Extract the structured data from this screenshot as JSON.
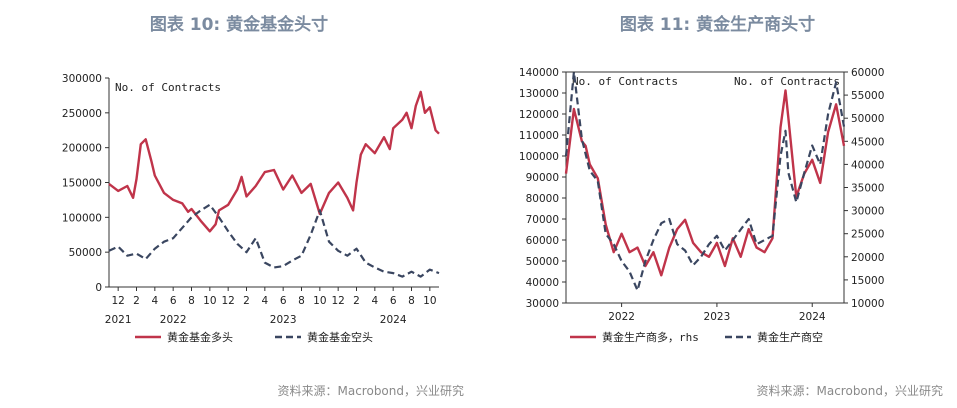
{
  "charts": [
    {
      "figure_title": "图表 10: 黄金基金头寸",
      "source": "资料来源：Macrobond，兴业研究"
    },
    {
      "figure_title": "图表 11: 黄金生产商头寸",
      "source": "资料来源：Macrobond，兴业研究"
    }
  ],
  "chart_data": [
    {
      "type": "line",
      "unit_label": "No. of Contracts",
      "x_domain": [
        "2021-11",
        "2024-11"
      ],
      "y_domain": [
        0,
        300000
      ],
      "y_ticks": [
        "0",
        "50000",
        "100000",
        "150000",
        "200000",
        "250000",
        "300000"
      ],
      "x_ticks": [
        {
          "x": "2021-12",
          "label": "12"
        },
        {
          "x": "2022-02",
          "label": "2"
        },
        {
          "x": "2022-04",
          "label": "4"
        },
        {
          "x": "2022-06",
          "label": "6"
        },
        {
          "x": "2022-08",
          "label": "8"
        },
        {
          "x": "2022-10",
          "label": "10"
        },
        {
          "x": "2022-12",
          "label": "12"
        },
        {
          "x": "2023-02",
          "label": "2"
        },
        {
          "x": "2023-04",
          "label": "4"
        },
        {
          "x": "2023-06",
          "label": "6"
        },
        {
          "x": "2023-08",
          "label": "8"
        },
        {
          "x": "2023-10",
          "label": "10"
        },
        {
          "x": "2023-12",
          "label": "12"
        },
        {
          "x": "2024-02",
          "label": "2"
        },
        {
          "x": "2024-04",
          "label": "4"
        },
        {
          "x": "2024-06",
          "label": "6"
        },
        {
          "x": "2024-08",
          "label": "8"
        },
        {
          "x": "2024-10",
          "label": "10"
        }
      ],
      "year_labels": [
        {
          "x": "2021-12",
          "label": "2021"
        },
        {
          "x": "2022-06",
          "label": "2022"
        },
        {
          "x": "2023-06",
          "label": "2023"
        },
        {
          "x": "2024-06",
          "label": "2024"
        }
      ],
      "grid": false,
      "legend_position": "bottom",
      "series": [
        {
          "name": "黄金基金多头",
          "axis": "left",
          "color": "#c0344a",
          "dash": "solid",
          "points": [
            [
              "2021-11",
              148000
            ],
            [
              "2021-12",
              138000
            ],
            [
              "2022-01",
              145000
            ],
            [
              "2022-01-20",
              128000
            ],
            [
              "2022-02",
              155000
            ],
            [
              "2022-02-15",
              205000
            ],
            [
              "2022-03",
              212000
            ],
            [
              "2022-03-20",
              180000
            ],
            [
              "2022-04",
              160000
            ],
            [
              "2022-05",
              135000
            ],
            [
              "2022-06",
              125000
            ],
            [
              "2022-07",
              120000
            ],
            [
              "2022-07-20",
              108000
            ],
            [
              "2022-08",
              112000
            ],
            [
              "2022-09",
              95000
            ],
            [
              "2022-10",
              80000
            ],
            [
              "2022-10-20",
              90000
            ],
            [
              "2022-11",
              110000
            ],
            [
              "2022-12",
              118000
            ],
            [
              "2023-01",
              140000
            ],
            [
              "2023-01-15",
              158000
            ],
            [
              "2023-02",
              130000
            ],
            [
              "2023-03",
              145000
            ],
            [
              "2023-04",
              165000
            ],
            [
              "2023-05",
              168000
            ],
            [
              "2023-06",
              140000
            ],
            [
              "2023-07",
              160000
            ],
            [
              "2023-08",
              135000
            ],
            [
              "2023-09",
              148000
            ],
            [
              "2023-10",
              105000
            ],
            [
              "2023-11",
              135000
            ],
            [
              "2023-12",
              150000
            ],
            [
              "2024-01",
              128000
            ],
            [
              "2024-01-20",
              110000
            ],
            [
              "2024-02",
              150000
            ],
            [
              "2024-02-15",
              190000
            ],
            [
              "2024-03",
              205000
            ],
            [
              "2024-04",
              192000
            ],
            [
              "2024-05",
              215000
            ],
            [
              "2024-05-20",
              198000
            ],
            [
              "2024-06",
              228000
            ],
            [
              "2024-07",
              240000
            ],
            [
              "2024-07-15",
              250000
            ],
            [
              "2024-08",
              228000
            ],
            [
              "2024-08-15",
              260000
            ],
            [
              "2024-09",
              280000
            ],
            [
              "2024-09-15",
              250000
            ],
            [
              "2024-10",
              258000
            ],
            [
              "2024-10-20",
              225000
            ],
            [
              "2024-11",
              220000
            ]
          ]
        },
        {
          "name": "黄金基金空头",
          "axis": "left",
          "color": "#3a4660",
          "dash": "dashed",
          "points": [
            [
              "2021-11",
              52000
            ],
            [
              "2021-12",
              58000
            ],
            [
              "2022-01",
              45000
            ],
            [
              "2022-02",
              48000
            ],
            [
              "2022-03",
              40000
            ],
            [
              "2022-04",
              55000
            ],
            [
              "2022-05",
              65000
            ],
            [
              "2022-06",
              70000
            ],
            [
              "2022-07",
              85000
            ],
            [
              "2022-08",
              100000
            ],
            [
              "2022-09",
              110000
            ],
            [
              "2022-10",
              118000
            ],
            [
              "2022-11",
              100000
            ],
            [
              "2022-12",
              80000
            ],
            [
              "2023-01",
              62000
            ],
            [
              "2023-02",
              50000
            ],
            [
              "2023-03",
              70000
            ],
            [
              "2023-04",
              35000
            ],
            [
              "2023-05",
              28000
            ],
            [
              "2023-06",
              30000
            ],
            [
              "2023-07",
              38000
            ],
            [
              "2023-08",
              45000
            ],
            [
              "2023-09",
              75000
            ],
            [
              "2023-10",
              110000
            ],
            [
              "2023-11",
              65000
            ],
            [
              "2023-12",
              52000
            ],
            [
              "2024-01",
              45000
            ],
            [
              "2024-02",
              55000
            ],
            [
              "2024-03",
              35000
            ],
            [
              "2024-04",
              28000
            ],
            [
              "2024-05",
              22000
            ],
            [
              "2024-06",
              20000
            ],
            [
              "2024-07",
              15000
            ],
            [
              "2024-08",
              22000
            ],
            [
              "2024-09",
              15000
            ],
            [
              "2024-10",
              25000
            ],
            [
              "2024-11",
              20000
            ]
          ]
        }
      ]
    },
    {
      "type": "line",
      "unit_label_left": "No. of Contracts",
      "unit_label_right": "No. of Contracts",
      "x_domain": [
        "2021-12",
        "2024-11"
      ],
      "y_domain_left": [
        30000,
        140000
      ],
      "y_domain_right": [
        10000,
        60000
      ],
      "y_ticks_left": [
        "30000",
        "40000",
        "50000",
        "60000",
        "70000",
        "80000",
        "90000",
        "100000",
        "110000",
        "120000",
        "130000",
        "140000"
      ],
      "y_ticks_right": [
        "10000",
        "15000",
        "20000",
        "25000",
        "30000",
        "35000",
        "40000",
        "45000",
        "50000",
        "55000",
        "60000"
      ],
      "x_ticks": [
        {
          "x": "2022-07",
          "label": "2022"
        },
        {
          "x": "2023-07",
          "label": "2023"
        },
        {
          "x": "2024-07",
          "label": "2024"
        }
      ],
      "grid": false,
      "legend_position": "bottom",
      "series": [
        {
          "name": "黄金生产商多，rhs",
          "axis": "right",
          "color": "#c0344a",
          "dash": "solid",
          "points": [
            [
              "2021-12",
              38000
            ],
            [
              "2022-01",
              52000
            ],
            [
              "2022-02",
              45000
            ],
            [
              "2022-02-15",
              44000
            ],
            [
              "2022-03",
              40000
            ],
            [
              "2022-04",
              37000
            ],
            [
              "2022-05",
              27000
            ],
            [
              "2022-06",
              21000
            ],
            [
              "2022-07",
              25000
            ],
            [
              "2022-08",
              21000
            ],
            [
              "2022-09",
              22000
            ],
            [
              "2022-10",
              18000
            ],
            [
              "2022-11",
              21000
            ],
            [
              "2022-12",
              16000
            ],
            [
              "2023-01",
              22000
            ],
            [
              "2023-02",
              26000
            ],
            [
              "2023-03",
              28000
            ],
            [
              "2023-04",
              23000
            ],
            [
              "2023-05",
              21000
            ],
            [
              "2023-06",
              20000
            ],
            [
              "2023-07",
              23000
            ],
            [
              "2023-08",
              18000
            ],
            [
              "2023-09",
              24000
            ],
            [
              "2023-10",
              20000
            ],
            [
              "2023-11",
              26000
            ],
            [
              "2023-12",
              22000
            ],
            [
              "2024-01",
              21000
            ],
            [
              "2024-02",
              24000
            ],
            [
              "2024-03",
              48000
            ],
            [
              "2024-03-20",
              56000
            ],
            [
              "2024-04",
              50000
            ],
            [
              "2024-05",
              33000
            ],
            [
              "2024-06",
              38000
            ],
            [
              "2024-07",
              41000
            ],
            [
              "2024-08",
              36000
            ],
            [
              "2024-09",
              47000
            ],
            [
              "2024-10",
              53000
            ],
            [
              "2024-11",
              44000
            ]
          ]
        },
        {
          "name": "黄金生产商空",
          "axis": "left",
          "color": "#3a4660",
          "dash": "dashed",
          "points": [
            [
              "2021-12",
              100000
            ],
            [
              "2022-01",
              140000
            ],
            [
              "2022-02",
              108000
            ],
            [
              "2022-03",
              93000
            ],
            [
              "2022-04",
              88000
            ],
            [
              "2022-05",
              63000
            ],
            [
              "2022-06",
              58000
            ],
            [
              "2022-07",
              50000
            ],
            [
              "2022-08",
              45000
            ],
            [
              "2022-09",
              36000
            ],
            [
              "2022-10",
              50000
            ],
            [
              "2022-11",
              60000
            ],
            [
              "2022-12",
              68000
            ],
            [
              "2023-01",
              70000
            ],
            [
              "2023-02",
              58000
            ],
            [
              "2023-03",
              55000
            ],
            [
              "2023-04",
              48000
            ],
            [
              "2023-05",
              52000
            ],
            [
              "2023-06",
              58000
            ],
            [
              "2023-07",
              62000
            ],
            [
              "2023-08",
              55000
            ],
            [
              "2023-09",
              60000
            ],
            [
              "2023-10",
              65000
            ],
            [
              "2023-11",
              70000
            ],
            [
              "2023-12",
              58000
            ],
            [
              "2024-01",
              60000
            ],
            [
              "2024-02",
              62000
            ],
            [
              "2024-03",
              100000
            ],
            [
              "2024-03-20",
              112000
            ],
            [
              "2024-04",
              92000
            ],
            [
              "2024-05",
              78000
            ],
            [
              "2024-06",
              92000
            ],
            [
              "2024-07",
              105000
            ],
            [
              "2024-08",
              96000
            ],
            [
              "2024-09",
              120000
            ],
            [
              "2024-10",
              135000
            ],
            [
              "2024-11",
              114000
            ]
          ]
        }
      ]
    }
  ]
}
